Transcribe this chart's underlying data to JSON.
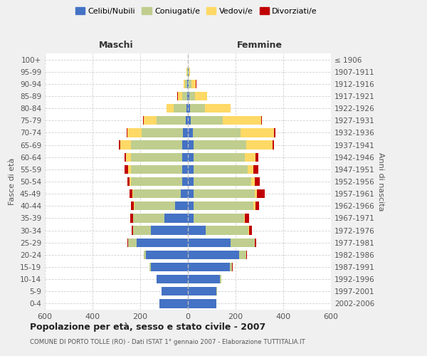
{
  "age_groups": [
    "0-4",
    "5-9",
    "10-14",
    "15-19",
    "20-24",
    "25-29",
    "30-34",
    "35-39",
    "40-44",
    "45-49",
    "50-54",
    "55-59",
    "60-64",
    "65-69",
    "70-74",
    "75-79",
    "80-84",
    "85-89",
    "90-94",
    "95-99",
    "100+"
  ],
  "birth_years": [
    "2002-2006",
    "1997-2001",
    "1992-1996",
    "1987-1991",
    "1982-1986",
    "1977-1981",
    "1972-1976",
    "1967-1971",
    "1962-1966",
    "1957-1961",
    "1952-1956",
    "1947-1951",
    "1942-1946",
    "1937-1941",
    "1932-1936",
    "1927-1931",
    "1922-1926",
    "1917-1921",
    "1912-1916",
    "1907-1911",
    "≤ 1906"
  ],
  "males_celibe": [
    120,
    110,
    130,
    155,
    175,
    215,
    155,
    100,
    55,
    30,
    25,
    25,
    25,
    25,
    20,
    10,
    5,
    3,
    2,
    1,
    1
  ],
  "males_coniugato": [
    0,
    1,
    2,
    5,
    10,
    35,
    75,
    130,
    170,
    200,
    215,
    215,
    215,
    215,
    175,
    120,
    55,
    22,
    10,
    3,
    0
  ],
  "males_vedovo": [
    0,
    0,
    0,
    0,
    0,
    0,
    1,
    1,
    2,
    3,
    5,
    10,
    20,
    45,
    60,
    55,
    30,
    18,
    5,
    2,
    0
  ],
  "males_divorziato": [
    0,
    0,
    0,
    0,
    1,
    3,
    5,
    10,
    12,
    12,
    10,
    15,
    5,
    6,
    3,
    3,
    1,
    1,
    1,
    0,
    0
  ],
  "females_nubile": [
    120,
    120,
    135,
    175,
    215,
    180,
    75,
    25,
    25,
    25,
    25,
    25,
    25,
    25,
    20,
    12,
    8,
    5,
    4,
    3,
    1
  ],
  "females_coniugata": [
    0,
    2,
    5,
    10,
    30,
    100,
    180,
    210,
    250,
    255,
    240,
    225,
    215,
    220,
    200,
    135,
    65,
    25,
    12,
    2,
    0
  ],
  "females_vedova": [
    0,
    0,
    0,
    1,
    1,
    2,
    3,
    5,
    8,
    10,
    15,
    25,
    45,
    110,
    140,
    160,
    105,
    50,
    18,
    4,
    0
  ],
  "females_divorziata": [
    0,
    0,
    0,
    1,
    2,
    6,
    12,
    16,
    16,
    32,
    20,
    22,
    10,
    6,
    6,
    4,
    2,
    1,
    1,
    0,
    0
  ],
  "color_celibe": "#4472C4",
  "color_coniugato": "#BFCE8E",
  "color_vedovo": "#FFD966",
  "color_divorziato": "#C00000",
  "xlim": 600,
  "title": "Popolazione per età, sesso e stato civile - 2007",
  "subtitle": "COMUNE DI PORTO TOLLE (RO) - Dati ISTAT 1° gennaio 2007 - Elaborazione TUTTITALIA.IT",
  "ylabel_left": "Fasce di età",
  "ylabel_right": "Anni di nascita",
  "label_maschi": "Maschi",
  "label_femmine": "Femmine",
  "legend_labels": [
    "Celibi/Nubili",
    "Coniugati/e",
    "Vedovi/e",
    "Divorziati/e"
  ],
  "bg_color": "#f0f0f0",
  "plot_bg": "#ffffff",
  "grid_color": "#cccccc"
}
